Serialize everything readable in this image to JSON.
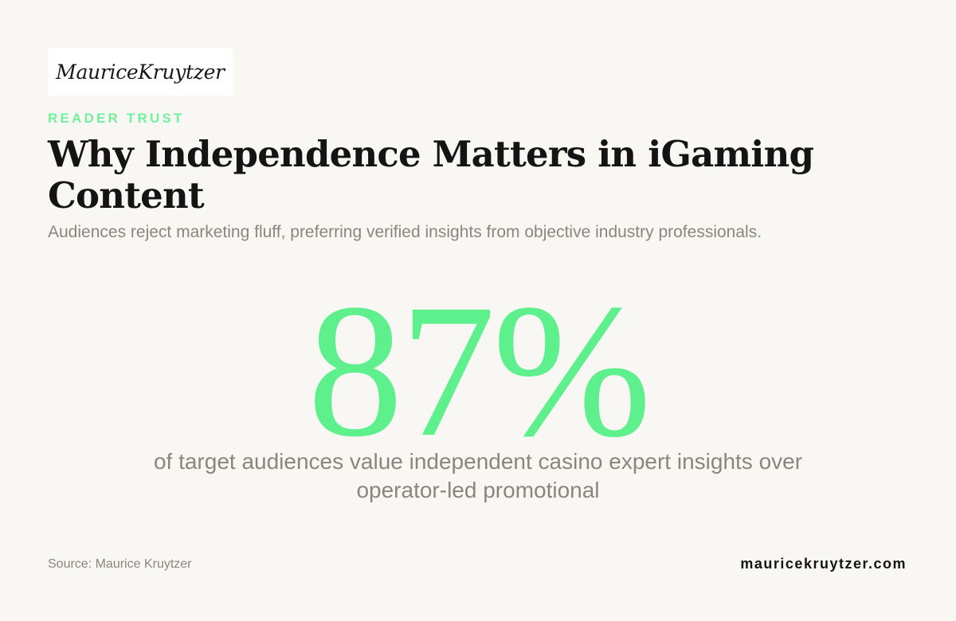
{
  "brand": {
    "logo_text": "MauriceKruytzer"
  },
  "header": {
    "eyebrow": "READER TRUST",
    "title": "Why Independence Matters in iGaming Content",
    "subtitle": "Audiences reject marketing fluff, preferring verified insights from objective industry professionals."
  },
  "stat": {
    "value": "87%",
    "caption": "of target audiences value independent casino expert insights over operator-led promotional"
  },
  "footer": {
    "source": "Source: Maurice Kruytzer",
    "site": "mauricekruytzer.com"
  },
  "colors": {
    "accent": "#5ef08d",
    "background": "#f8f7f3",
    "text_dark": "#141414",
    "text_muted": "#8a857f"
  }
}
